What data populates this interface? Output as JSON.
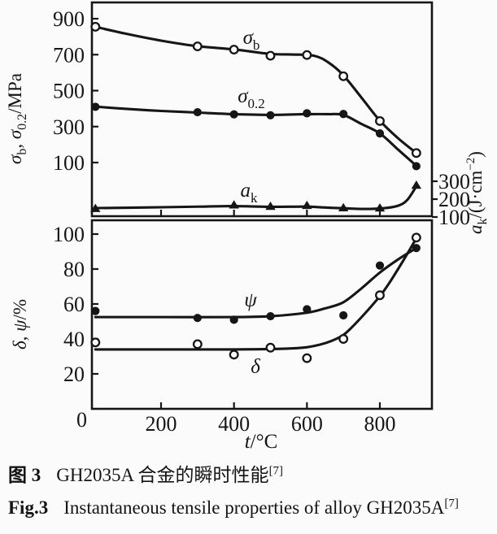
{
  "page": {
    "background": "#fbfbfb",
    "ink": "#161616"
  },
  "captions": {
    "zh": {
      "label": "图 3",
      "text": "GH2035A 合金的瞬时性能",
      "ref": "[7]"
    },
    "en": {
      "label": "Fig.3",
      "text": "Instantaneous tensile properties of alloy GH2035A",
      "ref": "[7]"
    }
  },
  "chart_data": {
    "type": "line",
    "title": "Instantaneous tensile properties of alloy GH2035A",
    "grid": false,
    "legend_position": "inline-curve-labels",
    "x_axis": {
      "label_text": "t/°C",
      "label_segments": [
        [
          "i",
          "t"
        ],
        [
          "n",
          "/°C"
        ]
      ],
      "ticks": [
        200,
        400,
        600,
        800
      ],
      "origin_label": "0",
      "range": [
        0,
        940
      ]
    },
    "panels": [
      {
        "id": "strength-impact",
        "left_axis": {
          "label_text": "σb, σ0.2/MPa",
          "label_segments": [
            [
              "i",
              "σ"
            ],
            [
              "sub",
              "b"
            ],
            [
              "n",
              ", "
            ],
            [
              "i",
              "σ"
            ],
            [
              "sub",
              "0.2"
            ],
            [
              "n",
              "/MPa"
            ]
          ],
          "ticks": [
            900,
            700,
            500,
            300,
            100
          ],
          "range": [
            -200,
            990
          ]
        },
        "right_axis": {
          "label_text": "ak/(J·cm−2)",
          "label_segments": [
            [
              "i",
              "a"
            ],
            [
              "sub",
              "k"
            ],
            [
              "n",
              "/(J·cm"
            ],
            [
              "sup",
              "−2"
            ],
            [
              "n",
              ")"
            ]
          ],
          "ticks": [
            300,
            200,
            100
          ],
          "range": [
            100,
            1300
          ]
        },
        "series": [
          {
            "id": "sigma-b",
            "label_text": "σb",
            "label_segments": [
              [
                "i",
                "σ"
              ],
              [
                "sub",
                "b"
              ]
            ],
            "marker": "open-circle",
            "axis": "left",
            "points": {
              "t": [
                20,
                300,
                400,
                500,
                600,
                700,
                800,
                900
              ],
              "v": [
                855,
                746,
                728,
                694,
                698,
                580,
                331,
                153
              ]
            },
            "trend": [
              [
                20,
                855
              ],
              [
                100,
                818
              ],
              [
                200,
                778
              ],
              [
                300,
                747
              ],
              [
                400,
                729
              ],
              [
                500,
                704
              ],
              [
                560,
                701
              ],
              [
                620,
                694
              ],
              [
                660,
                655
              ],
              [
                700,
                585
              ],
              [
                750,
                460
              ],
              [
                800,
                333
              ],
              [
                850,
                235
              ],
              [
                900,
                153
              ]
            ]
          },
          {
            "id": "sigma-0-2",
            "label_text": "σ0.2",
            "label_segments": [
              [
                "i",
                "σ"
              ],
              [
                "sub",
                "0.2"
              ]
            ],
            "marker": "filled-circle",
            "axis": "left",
            "points": {
              "t": [
                20,
                300,
                400,
                500,
                600,
                700,
                800,
                900
              ],
              "v": [
                410,
                380,
                368,
                363,
                374,
                370,
                262,
                80
              ]
            },
            "trend": [
              [
                20,
                411
              ],
              [
                100,
                399
              ],
              [
                200,
                387
              ],
              [
                300,
                378
              ],
              [
                400,
                369
              ],
              [
                500,
                365
              ],
              [
                600,
                369
              ],
              [
                660,
                369
              ],
              [
                700,
                365
              ],
              [
                750,
                314
              ],
              [
                800,
                262
              ],
              [
                850,
                172
              ],
              [
                900,
                82
              ]
            ]
          },
          {
            "id": "a-k",
            "label_text": "ak",
            "label_segments": [
              [
                "i",
                "a"
              ],
              [
                "sub",
                "k"
              ]
            ],
            "marker": "filled-triangle",
            "axis": "right",
            "points": {
              "t": [
                20,
                400,
                500,
                600,
                700,
                800,
                900
              ],
              "v": [
                147,
                167,
                159,
                164,
                151,
                150,
                277
              ]
            },
            "trend": [
              [
                20,
                150
              ],
              [
                150,
                153
              ],
              [
                300,
                158
              ],
              [
                400,
                161
              ],
              [
                500,
                157
              ],
              [
                600,
                158
              ],
              [
                650,
                153
              ],
              [
                700,
                149
              ],
              [
                760,
                145
              ],
              [
                810,
                149
              ],
              [
                850,
                163
              ],
              [
                875,
                195
              ],
              [
                900,
                272
              ]
            ]
          }
        ]
      },
      {
        "id": "ductility",
        "left_axis": {
          "label_text": "δ, ψ/%",
          "label_segments": [
            [
              "i",
              "δ"
            ],
            [
              "n",
              ", "
            ],
            [
              "i",
              "ψ"
            ],
            [
              "n",
              "/%"
            ]
          ],
          "ticks": [
            100,
            80,
            60,
            40,
            20
          ],
          "range": [
            0,
            108
          ]
        },
        "series": [
          {
            "id": "psi",
            "label_text": "ψ",
            "label_segments": [
              [
                "i",
                "ψ"
              ]
            ],
            "marker": "filled-circle",
            "axis": "left",
            "points": {
              "t": [
                20,
                300,
                400,
                500,
                600,
                700,
                800,
                900
              ],
              "v": [
                56,
                52,
                51,
                53,
                57,
                53.5,
                82,
                92
              ]
            },
            "trend": [
              [
                20,
                52.5
              ],
              [
                200,
                52.5
              ],
              [
                400,
                52.5
              ],
              [
                500,
                53
              ],
              [
                600,
                55
              ],
              [
                650,
                57.5
              ],
              [
                700,
                61
              ],
              [
                750,
                69
              ],
              [
                800,
                78
              ],
              [
                850,
                85.5
              ],
              [
                900,
                92
              ]
            ]
          },
          {
            "id": "delta",
            "label_text": "δ",
            "label_segments": [
              [
                "i",
                "δ"
              ]
            ],
            "marker": "open-circle",
            "axis": "left",
            "points": {
              "t": [
                20,
                300,
                400,
                500,
                600,
                700,
                800,
                900
              ],
              "v": [
                38,
                37,
                31,
                35,
                29,
                40,
                65,
                98
              ]
            },
            "trend": [
              [
                20,
                34
              ],
              [
                200,
                34
              ],
              [
                400,
                34
              ],
              [
                550,
                34.5
              ],
              [
                620,
                36
              ],
              [
                680,
                40
              ],
              [
                720,
                46
              ],
              [
                800,
                64.5
              ],
              [
                850,
                80
              ],
              [
                900,
                97.5
              ]
            ]
          }
        ]
      }
    ]
  }
}
